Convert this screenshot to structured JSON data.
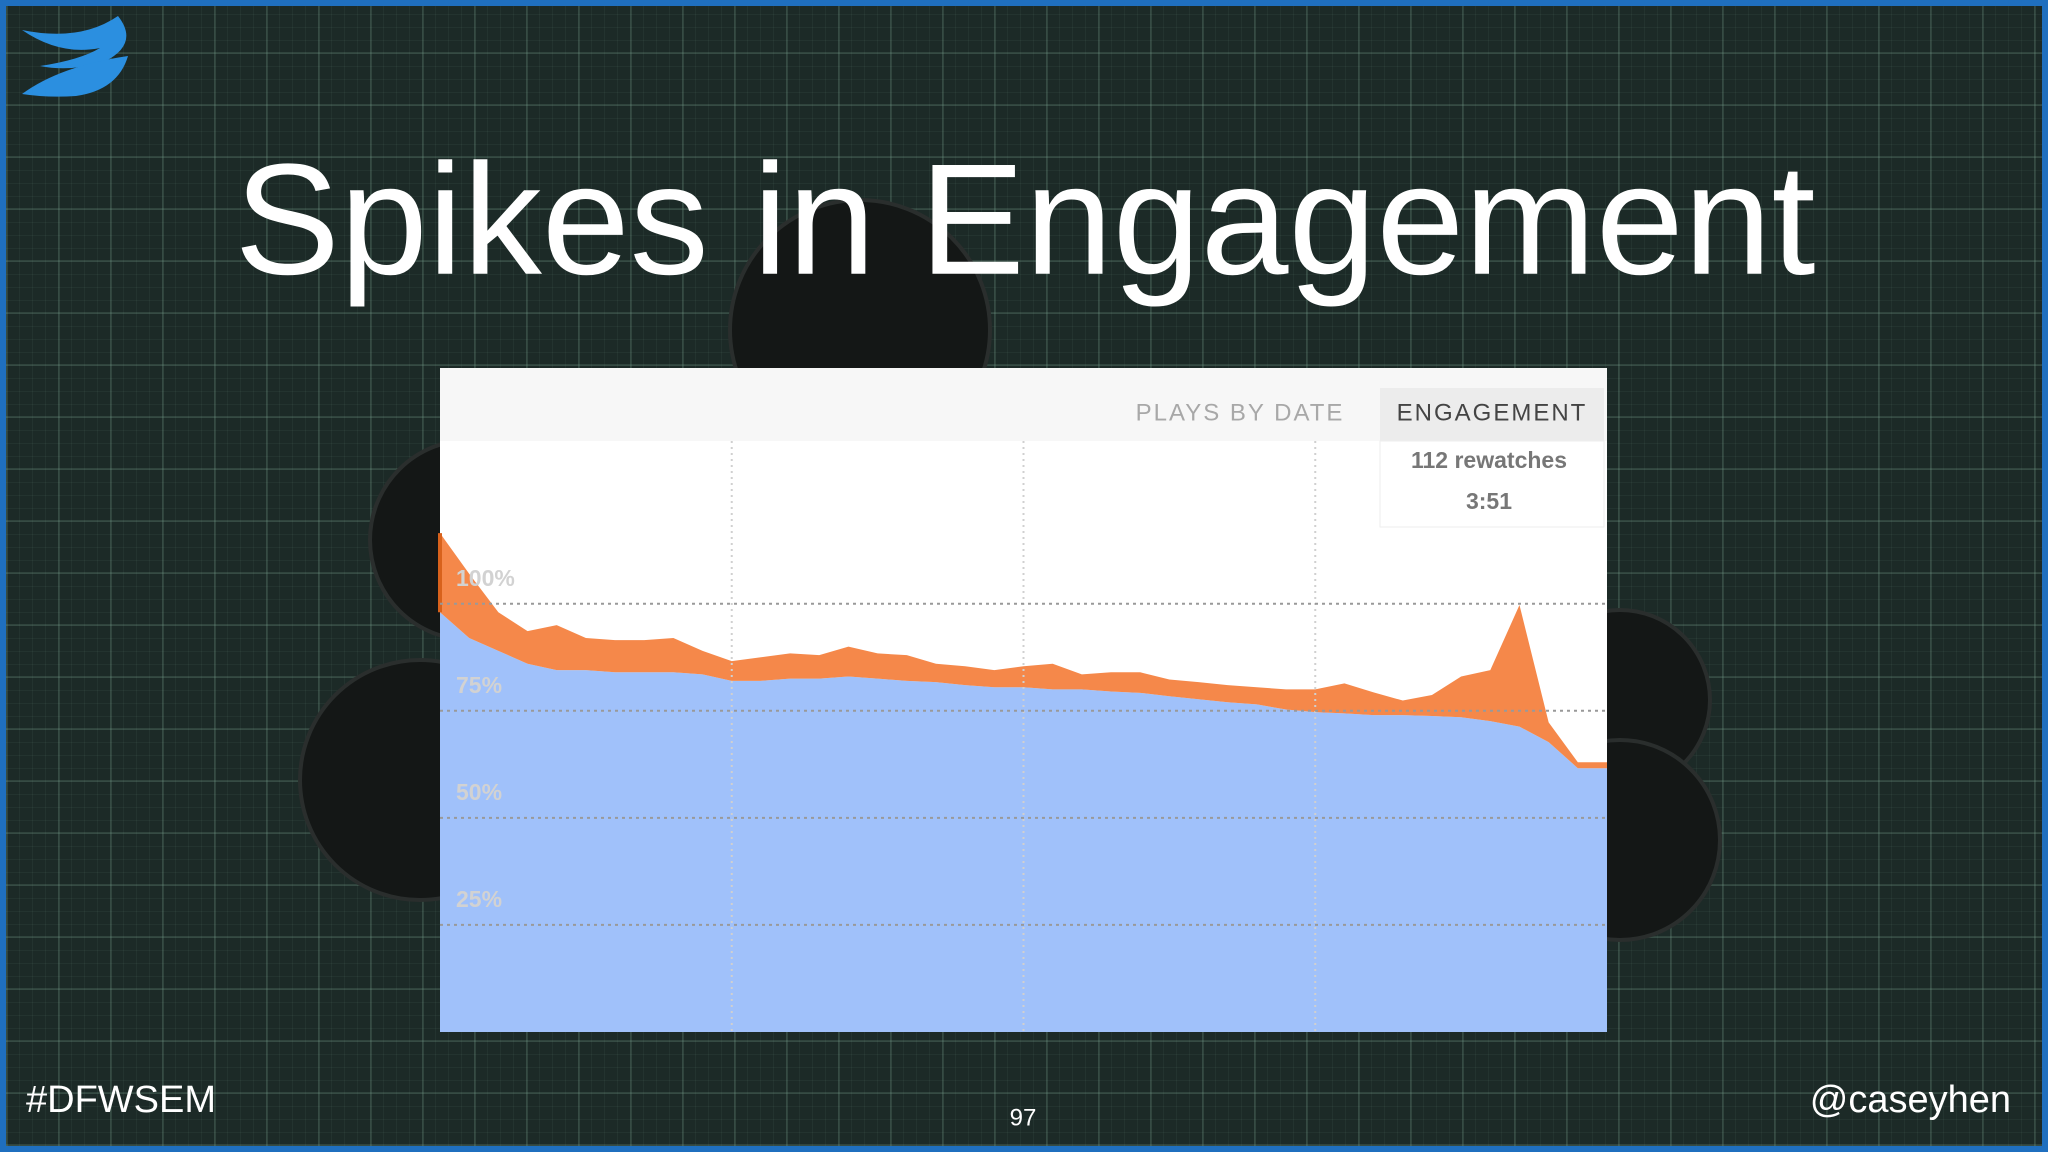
{
  "chart_data": {
    "type": "area",
    "stacked": true,
    "title": "Spikes in Engagement",
    "tabs": [
      "PLAYS BY DATE",
      "ENGAGEMENT"
    ],
    "tooltip": [
      "112 rewatches",
      "3:51"
    ],
    "categories": [
      null,
      null,
      null,
      null,
      null,
      null,
      null,
      null,
      null,
      null,
      null,
      null,
      null,
      null,
      null,
      null,
      null,
      null,
      null,
      null,
      null,
      null,
      null,
      null,
      null,
      null,
      null,
      null,
      null,
      null,
      null,
      null,
      null,
      null,
      null,
      null,
      null,
      null,
      null,
      null,
      null
    ],
    "series": [
      {
        "color": "#a0c1fa",
        "values": [
          98,
          92,
          89,
          86,
          84.5,
          84.5,
          84,
          84,
          84,
          83.5,
          82,
          82,
          82.5,
          82.5,
          83,
          82.5,
          82,
          81.7,
          81,
          80.5,
          80.5,
          80,
          80,
          79.5,
          79.2,
          78.4,
          77.7,
          77,
          76.5,
          75.3,
          74.7,
          74.4,
          74,
          74,
          73.8,
          73.5,
          72.6,
          71.3,
          67.7,
          61.6,
          61.6
        ]
      },
      {
        "color": "#f5884a",
        "values": [
          18.5,
          15,
          9,
          7.6,
          10.5,
          7.5,
          7.5,
          7.5,
          8,
          5.5,
          4.6,
          5.5,
          5.9,
          5.5,
          7,
          5.9,
          6,
          4.3,
          4.4,
          4,
          4.9,
          6,
          3.5,
          4.5,
          4.8,
          3.9,
          4,
          4,
          4,
          4.7,
          5.3,
          7,
          5.3,
          3.4,
          4.9,
          9.5,
          11.9,
          28.4,
          4.6,
          1.4,
          1.4
        ]
      }
    ],
    "ylim": [
      0,
      138
    ],
    "yticks": [
      {
        "value": 25,
        "label": "25%"
      },
      {
        "value": 50,
        "label": "50%"
      },
      {
        "value": 75,
        "label": "75%"
      },
      {
        "value": 100,
        "label": "100%"
      }
    ],
    "grid": true
  },
  "slide": {
    "hashtag": "#DFWSEM",
    "page": "97",
    "handle": "@caseyhen"
  }
}
